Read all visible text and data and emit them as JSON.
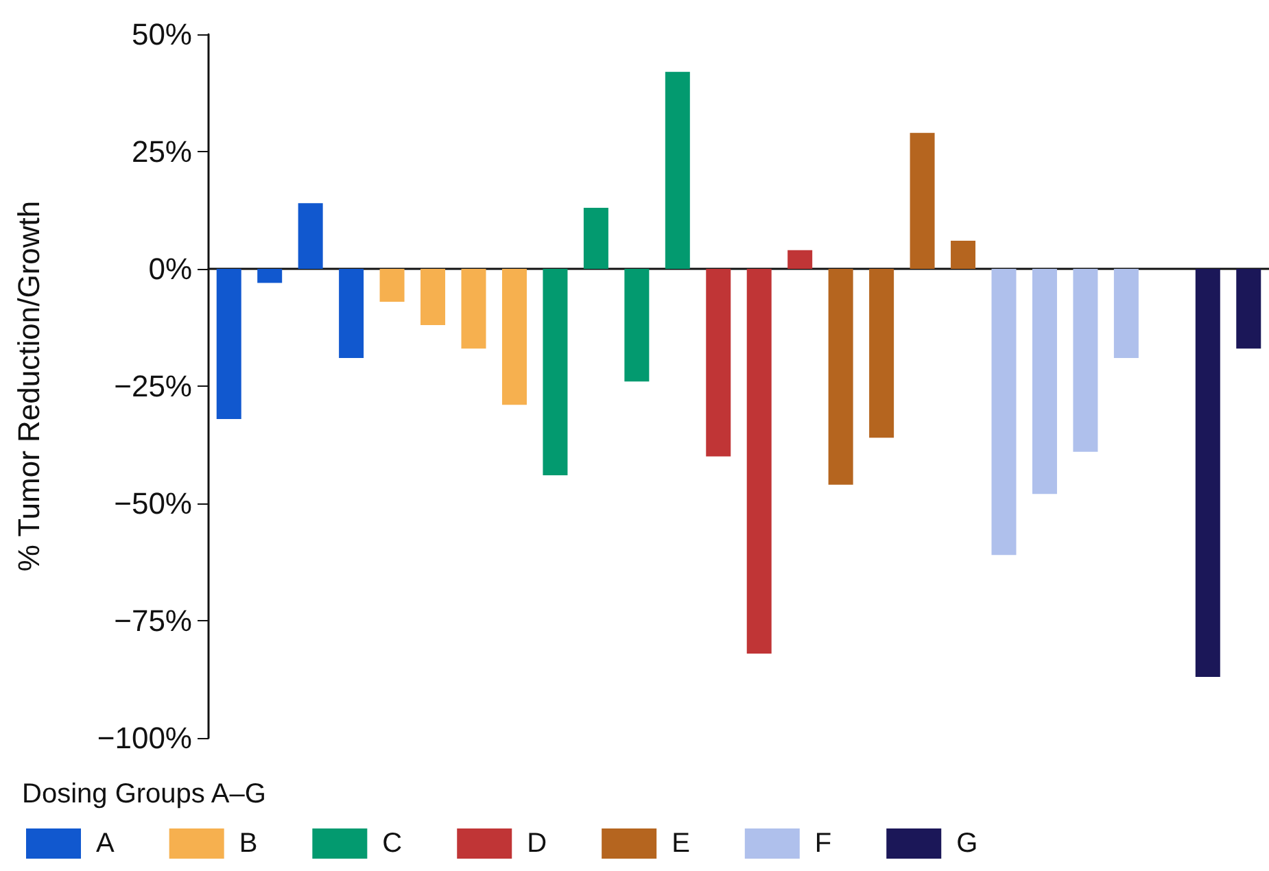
{
  "chart_data": {
    "type": "bar",
    "ylabel": "% Tumor Reduction/Growth",
    "legend_title": "Dosing Groups A–G",
    "categories": [
      null,
      null,
      null,
      null,
      null,
      null,
      null,
      null,
      null,
      null,
      null,
      null,
      null,
      null,
      null,
      null,
      null,
      null,
      null,
      null,
      null,
      null,
      null,
      null,
      null,
      null
    ],
    "series": [
      {
        "name": "A",
        "color": "#1158cf",
        "values": [
          -32,
          -3,
          14,
          -19,
          null,
          null,
          null,
          null,
          null,
          null,
          null,
          null,
          null,
          null,
          null,
          null,
          null,
          null,
          null,
          null,
          null,
          null,
          null,
          null,
          null,
          null
        ]
      },
      {
        "name": "B",
        "color": "#f6b04f",
        "values": [
          null,
          null,
          null,
          null,
          -7,
          -12,
          -17,
          -29,
          null,
          null,
          null,
          null,
          null,
          null,
          null,
          null,
          null,
          null,
          null,
          null,
          null,
          null,
          null,
          null,
          null,
          null
        ]
      },
      {
        "name": "C",
        "color": "#039a6f",
        "values": [
          null,
          null,
          null,
          null,
          null,
          null,
          null,
          null,
          -44,
          13,
          -24,
          42,
          null,
          null,
          null,
          null,
          null,
          null,
          null,
          null,
          null,
          null,
          null,
          null,
          null,
          null
        ]
      },
      {
        "name": "D",
        "color": "#c03536",
        "values": [
          null,
          null,
          null,
          null,
          null,
          null,
          null,
          null,
          null,
          null,
          null,
          null,
          -40,
          -82,
          4,
          null,
          null,
          null,
          null,
          null,
          null,
          null,
          null,
          null,
          null,
          null
        ]
      },
      {
        "name": "E",
        "color": "#b5651f",
        "values": [
          null,
          null,
          null,
          null,
          null,
          null,
          null,
          null,
          null,
          null,
          null,
          null,
          null,
          null,
          null,
          -46,
          -36,
          29,
          6,
          null,
          null,
          null,
          null,
          null,
          null,
          null
        ]
      },
      {
        "name": "F",
        "color": "#afc0ec",
        "values": [
          null,
          null,
          null,
          null,
          null,
          null,
          null,
          null,
          null,
          null,
          null,
          null,
          null,
          null,
          null,
          null,
          null,
          null,
          null,
          -61,
          -48,
          -39,
          -19,
          null,
          null,
          null
        ]
      },
      {
        "name": "G",
        "color": "#1b1758",
        "values": [
          null,
          null,
          null,
          null,
          null,
          null,
          null,
          null,
          null,
          null,
          null,
          null,
          null,
          null,
          null,
          null,
          null,
          null,
          null,
          null,
          null,
          null,
          null,
          null,
          -87,
          -17
        ]
      }
    ],
    "ylim": [
      -100,
      50
    ],
    "yticks": [
      {
        "value": -100,
        "label": "−100%"
      },
      {
        "value": -75,
        "label": "−75%"
      },
      {
        "value": -50,
        "label": "−50%"
      },
      {
        "value": -25,
        "label": "−25%"
      },
      {
        "value": 0,
        "label": "0%"
      },
      {
        "value": 25,
        "label": "25%"
      },
      {
        "value": 50,
        "label": "50%"
      }
    ],
    "legend": "bottom left"
  }
}
